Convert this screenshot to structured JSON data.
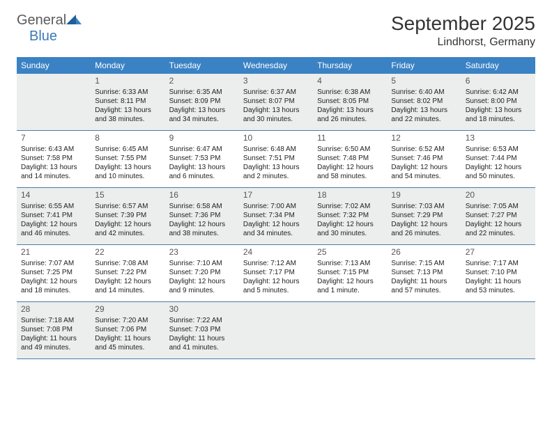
{
  "logo": {
    "text1": "General",
    "text2": "Blue"
  },
  "title": "September 2025",
  "location": "Lindhorst, Germany",
  "theme": {
    "header_bg": "#3a82c4",
    "header_fg": "#ffffff",
    "shade_bg": "#eceded",
    "border_color": "#4a7aa8",
    "logo_gray": "#5a5a5a",
    "logo_blue": "#3a7ab8"
  },
  "weekdays": [
    "Sunday",
    "Monday",
    "Tuesday",
    "Wednesday",
    "Thursday",
    "Friday",
    "Saturday"
  ],
  "weeks": [
    {
      "shaded": true,
      "days": [
        {
          "empty": true
        },
        {
          "n": "1",
          "sunrise": "Sunrise: 6:33 AM",
          "sunset": "Sunset: 8:11 PM",
          "dl1": "Daylight: 13 hours",
          "dl2": "and 38 minutes."
        },
        {
          "n": "2",
          "sunrise": "Sunrise: 6:35 AM",
          "sunset": "Sunset: 8:09 PM",
          "dl1": "Daylight: 13 hours",
          "dl2": "and 34 minutes."
        },
        {
          "n": "3",
          "sunrise": "Sunrise: 6:37 AM",
          "sunset": "Sunset: 8:07 PM",
          "dl1": "Daylight: 13 hours",
          "dl2": "and 30 minutes."
        },
        {
          "n": "4",
          "sunrise": "Sunrise: 6:38 AM",
          "sunset": "Sunset: 8:05 PM",
          "dl1": "Daylight: 13 hours",
          "dl2": "and 26 minutes."
        },
        {
          "n": "5",
          "sunrise": "Sunrise: 6:40 AM",
          "sunset": "Sunset: 8:02 PM",
          "dl1": "Daylight: 13 hours",
          "dl2": "and 22 minutes."
        },
        {
          "n": "6",
          "sunrise": "Sunrise: 6:42 AM",
          "sunset": "Sunset: 8:00 PM",
          "dl1": "Daylight: 13 hours",
          "dl2": "and 18 minutes."
        }
      ]
    },
    {
      "shaded": false,
      "days": [
        {
          "n": "7",
          "sunrise": "Sunrise: 6:43 AM",
          "sunset": "Sunset: 7:58 PM",
          "dl1": "Daylight: 13 hours",
          "dl2": "and 14 minutes."
        },
        {
          "n": "8",
          "sunrise": "Sunrise: 6:45 AM",
          "sunset": "Sunset: 7:55 PM",
          "dl1": "Daylight: 13 hours",
          "dl2": "and 10 minutes."
        },
        {
          "n": "9",
          "sunrise": "Sunrise: 6:47 AM",
          "sunset": "Sunset: 7:53 PM",
          "dl1": "Daylight: 13 hours",
          "dl2": "and 6 minutes."
        },
        {
          "n": "10",
          "sunrise": "Sunrise: 6:48 AM",
          "sunset": "Sunset: 7:51 PM",
          "dl1": "Daylight: 13 hours",
          "dl2": "and 2 minutes."
        },
        {
          "n": "11",
          "sunrise": "Sunrise: 6:50 AM",
          "sunset": "Sunset: 7:48 PM",
          "dl1": "Daylight: 12 hours",
          "dl2": "and 58 minutes."
        },
        {
          "n": "12",
          "sunrise": "Sunrise: 6:52 AM",
          "sunset": "Sunset: 7:46 PM",
          "dl1": "Daylight: 12 hours",
          "dl2": "and 54 minutes."
        },
        {
          "n": "13",
          "sunrise": "Sunrise: 6:53 AM",
          "sunset": "Sunset: 7:44 PM",
          "dl1": "Daylight: 12 hours",
          "dl2": "and 50 minutes."
        }
      ]
    },
    {
      "shaded": true,
      "days": [
        {
          "n": "14",
          "sunrise": "Sunrise: 6:55 AM",
          "sunset": "Sunset: 7:41 PM",
          "dl1": "Daylight: 12 hours",
          "dl2": "and 46 minutes."
        },
        {
          "n": "15",
          "sunrise": "Sunrise: 6:57 AM",
          "sunset": "Sunset: 7:39 PM",
          "dl1": "Daylight: 12 hours",
          "dl2": "and 42 minutes."
        },
        {
          "n": "16",
          "sunrise": "Sunrise: 6:58 AM",
          "sunset": "Sunset: 7:36 PM",
          "dl1": "Daylight: 12 hours",
          "dl2": "and 38 minutes."
        },
        {
          "n": "17",
          "sunrise": "Sunrise: 7:00 AM",
          "sunset": "Sunset: 7:34 PM",
          "dl1": "Daylight: 12 hours",
          "dl2": "and 34 minutes."
        },
        {
          "n": "18",
          "sunrise": "Sunrise: 7:02 AM",
          "sunset": "Sunset: 7:32 PM",
          "dl1": "Daylight: 12 hours",
          "dl2": "and 30 minutes."
        },
        {
          "n": "19",
          "sunrise": "Sunrise: 7:03 AM",
          "sunset": "Sunset: 7:29 PM",
          "dl1": "Daylight: 12 hours",
          "dl2": "and 26 minutes."
        },
        {
          "n": "20",
          "sunrise": "Sunrise: 7:05 AM",
          "sunset": "Sunset: 7:27 PM",
          "dl1": "Daylight: 12 hours",
          "dl2": "and 22 minutes."
        }
      ]
    },
    {
      "shaded": false,
      "days": [
        {
          "n": "21",
          "sunrise": "Sunrise: 7:07 AM",
          "sunset": "Sunset: 7:25 PM",
          "dl1": "Daylight: 12 hours",
          "dl2": "and 18 minutes."
        },
        {
          "n": "22",
          "sunrise": "Sunrise: 7:08 AM",
          "sunset": "Sunset: 7:22 PM",
          "dl1": "Daylight: 12 hours",
          "dl2": "and 14 minutes."
        },
        {
          "n": "23",
          "sunrise": "Sunrise: 7:10 AM",
          "sunset": "Sunset: 7:20 PM",
          "dl1": "Daylight: 12 hours",
          "dl2": "and 9 minutes."
        },
        {
          "n": "24",
          "sunrise": "Sunrise: 7:12 AM",
          "sunset": "Sunset: 7:17 PM",
          "dl1": "Daylight: 12 hours",
          "dl2": "and 5 minutes."
        },
        {
          "n": "25",
          "sunrise": "Sunrise: 7:13 AM",
          "sunset": "Sunset: 7:15 PM",
          "dl1": "Daylight: 12 hours",
          "dl2": "and 1 minute."
        },
        {
          "n": "26",
          "sunrise": "Sunrise: 7:15 AM",
          "sunset": "Sunset: 7:13 PM",
          "dl1": "Daylight: 11 hours",
          "dl2": "and 57 minutes."
        },
        {
          "n": "27",
          "sunrise": "Sunrise: 7:17 AM",
          "sunset": "Sunset: 7:10 PM",
          "dl1": "Daylight: 11 hours",
          "dl2": "and 53 minutes."
        }
      ]
    },
    {
      "shaded": true,
      "days": [
        {
          "n": "28",
          "sunrise": "Sunrise: 7:18 AM",
          "sunset": "Sunset: 7:08 PM",
          "dl1": "Daylight: 11 hours",
          "dl2": "and 49 minutes."
        },
        {
          "n": "29",
          "sunrise": "Sunrise: 7:20 AM",
          "sunset": "Sunset: 7:06 PM",
          "dl1": "Daylight: 11 hours",
          "dl2": "and 45 minutes."
        },
        {
          "n": "30",
          "sunrise": "Sunrise: 7:22 AM",
          "sunset": "Sunset: 7:03 PM",
          "dl1": "Daylight: 11 hours",
          "dl2": "and 41 minutes."
        },
        {
          "empty": true
        },
        {
          "empty": true
        },
        {
          "empty": true
        },
        {
          "empty": true
        }
      ]
    }
  ]
}
